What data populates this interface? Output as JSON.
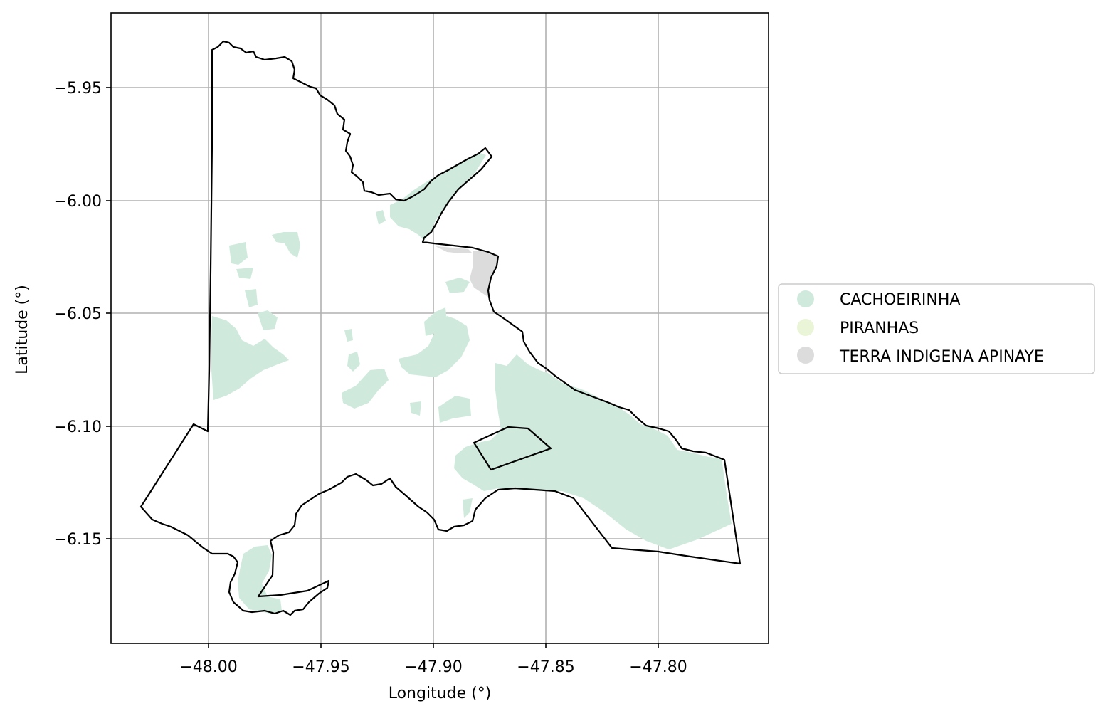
{
  "figure": {
    "xlabel": "Longitude (°)",
    "ylabel": "Latitude (°)"
  },
  "axes": {
    "xlim": [
      -48.043,
      -47.751
    ],
    "ylim": [
      -6.1984,
      -5.9166
    ],
    "xticks": [
      -48.0,
      -47.95,
      -47.9,
      -47.85,
      -47.8
    ],
    "xtick_labels": [
      "−48.00",
      "−47.95",
      "−47.90",
      "−47.85",
      "−47.80"
    ],
    "yticks": [
      -5.95,
      -6.0,
      -6.05,
      -6.1,
      -6.15
    ],
    "ytick_labels": [
      "−5.95",
      "−6.00",
      "−6.05",
      "−6.10",
      "−6.15"
    ],
    "grid": true
  },
  "legend": {
    "placement": "right, outside axes",
    "items": [
      {
        "label": "CACHOEIRINHA",
        "color": "#cfeadd"
      },
      {
        "label": "PIRANHAS",
        "color": "#eaf5d8"
      },
      {
        "label": "TERRA INDIGENA APINAYE",
        "color": "#dcdcdc"
      }
    ]
  },
  "colors": {
    "boundary": "#000000",
    "grid": "#b0b0b0",
    "cachoeirinha": "#cfeadd",
    "piranhas": "#eaf5d8",
    "terra_indigena_apinaye": "#dcdcdc"
  }
}
